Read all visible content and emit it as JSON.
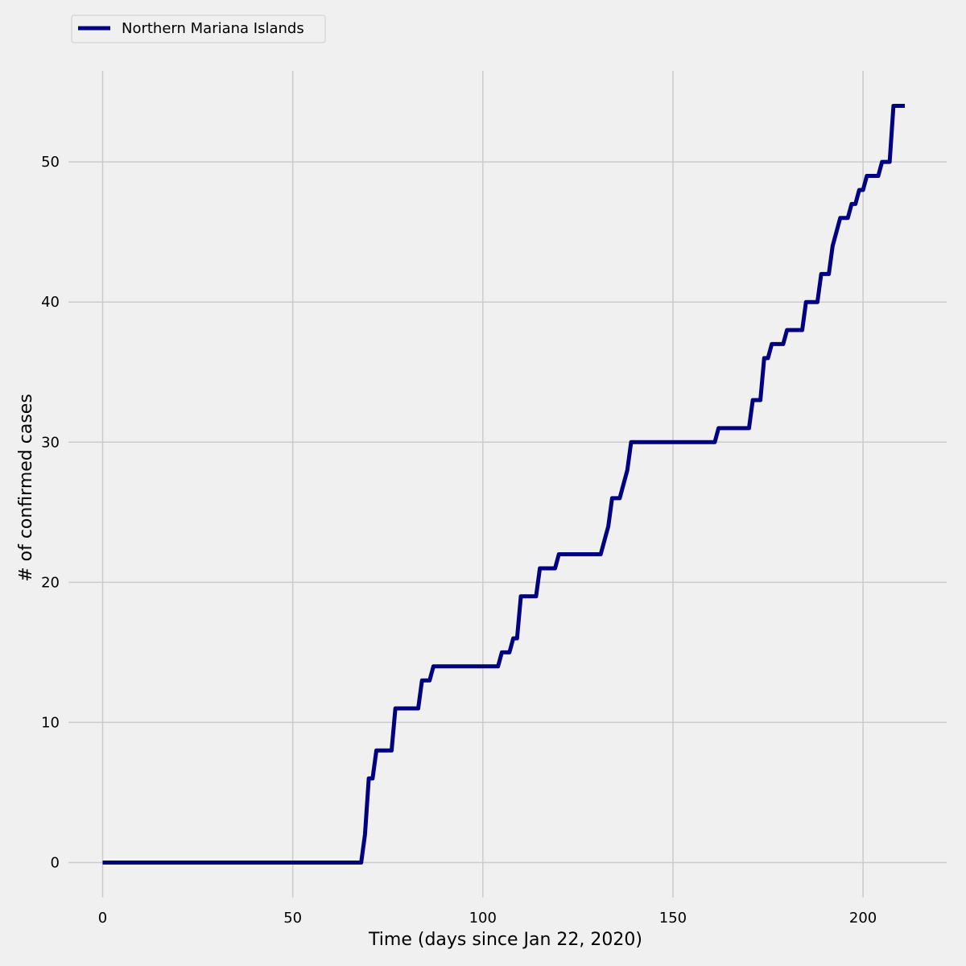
{
  "colors": {
    "background": "#f0f0f0",
    "grid": "#cbcbcb",
    "series": "#000080"
  },
  "chart_data": {
    "type": "line",
    "title": "",
    "xlabel": "Time (days since Jan 22, 2020)",
    "ylabel": "# of confirmed cases",
    "xlim": [
      -9,
      222
    ],
    "ylim": [
      -2.5,
      56.5
    ],
    "x_ticks": [
      0,
      50,
      100,
      150,
      200
    ],
    "y_ticks": [
      0,
      10,
      20,
      30,
      40,
      50
    ],
    "grid": true,
    "legend_position": "top-left",
    "series": [
      {
        "name": "Northern Mariana Islands",
        "points": [
          [
            0,
            0
          ],
          [
            68,
            0
          ],
          [
            69,
            2
          ],
          [
            70,
            6
          ],
          [
            71,
            6
          ],
          [
            72,
            8
          ],
          [
            76,
            8
          ],
          [
            77,
            11
          ],
          [
            83,
            11
          ],
          [
            84,
            13
          ],
          [
            86,
            13
          ],
          [
            87,
            14
          ],
          [
            104,
            14
          ],
          [
            105,
            15
          ],
          [
            107,
            15
          ],
          [
            108,
            16
          ],
          [
            109,
            16
          ],
          [
            110,
            19
          ],
          [
            114,
            19
          ],
          [
            115,
            21
          ],
          [
            119,
            21
          ],
          [
            120,
            22
          ],
          [
            131,
            22
          ],
          [
            133,
            24
          ],
          [
            134,
            26
          ],
          [
            136,
            26
          ],
          [
            138,
            28
          ],
          [
            139,
            30
          ],
          [
            161,
            30
          ],
          [
            162,
            31
          ],
          [
            170,
            31
          ],
          [
            171,
            33
          ],
          [
            173,
            33
          ],
          [
            174,
            36
          ],
          [
            175,
            36
          ],
          [
            176,
            37
          ],
          [
            179,
            37
          ],
          [
            180,
            38
          ],
          [
            184,
            38
          ],
          [
            185,
            40
          ],
          [
            188,
            40
          ],
          [
            189,
            42
          ],
          [
            191,
            42
          ],
          [
            192,
            44
          ],
          [
            194,
            46
          ],
          [
            196,
            46
          ],
          [
            197,
            47
          ],
          [
            198,
            47
          ],
          [
            199,
            48
          ],
          [
            200,
            48
          ],
          [
            201,
            49
          ],
          [
            204,
            49
          ],
          [
            205,
            50
          ],
          [
            207,
            50
          ],
          [
            208,
            54
          ],
          [
            211,
            54
          ]
        ]
      }
    ]
  }
}
